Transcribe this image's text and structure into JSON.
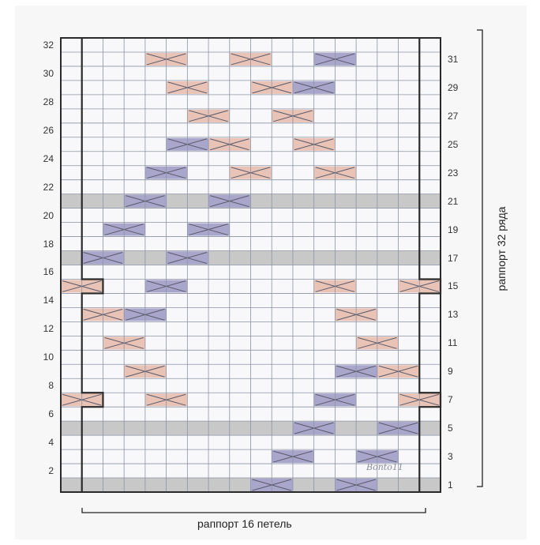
{
  "chart": {
    "columns": 18,
    "rows": 32,
    "repeat_stitches_label": "раппорт 16 петель",
    "repeat_rows_label": "раппорт 32 ряда",
    "watermark": "Bonto11",
    "left_row_numbers": [
      "32",
      "30",
      "28",
      "26",
      "24",
      "22",
      "20",
      "18",
      "16",
      "14",
      "12",
      "10",
      "8",
      "6",
      "4",
      "2"
    ],
    "right_row_numbers": [
      "31",
      "29",
      "27",
      "25",
      "23",
      "21",
      "19",
      "17",
      "15",
      "13",
      "11",
      "9",
      "7",
      "5",
      "3",
      "1"
    ],
    "colors": {
      "pink_cable": "#e9c3b6",
      "blue_cable": "#a9a6cc",
      "gray_row": "#c8c8c8",
      "grid_line": "#8c93a6",
      "border": "#2a2a2a"
    },
    "gray_rows": [
      1,
      5,
      17,
      21
    ],
    "gray_rows_partial": [
      {
        "row": 17,
        "from_col": 8,
        "to_col": 18
      }
    ],
    "cables": [
      {
        "row": 31,
        "col": 4,
        "color": "pink"
      },
      {
        "row": 31,
        "col": 8,
        "color": "pink"
      },
      {
        "row": 31,
        "col": 12,
        "color": "blue"
      },
      {
        "row": 29,
        "col": 5,
        "color": "pink"
      },
      {
        "row": 29,
        "col": 9,
        "color": "pink"
      },
      {
        "row": 29,
        "col": 11,
        "color": "blue"
      },
      {
        "row": 27,
        "col": 6,
        "color": "pink"
      },
      {
        "row": 27,
        "col": 10,
        "color": "pink"
      },
      {
        "row": 25,
        "col": 5,
        "color": "blue"
      },
      {
        "row": 25,
        "col": 7,
        "color": "pink"
      },
      {
        "row": 25,
        "col": 11,
        "color": "pink"
      },
      {
        "row": 23,
        "col": 4,
        "color": "blue"
      },
      {
        "row": 23,
        "col": 8,
        "color": "pink"
      },
      {
        "row": 23,
        "col": 12,
        "color": "pink"
      },
      {
        "row": 21,
        "col": 3,
        "color": "blue"
      },
      {
        "row": 21,
        "col": 7,
        "color": "blue"
      },
      {
        "row": 19,
        "col": 2,
        "color": "blue"
      },
      {
        "row": 19,
        "col": 6,
        "color": "blue"
      },
      {
        "row": 17,
        "col": 1,
        "color": "blue"
      },
      {
        "row": 17,
        "col": 5,
        "color": "blue"
      },
      {
        "row": 15,
        "col": 0,
        "color": "pink"
      },
      {
        "row": 15,
        "col": 4,
        "color": "blue"
      },
      {
        "row": 15,
        "col": 12,
        "color": "pink"
      },
      {
        "row": 15,
        "col": 16,
        "color": "pink"
      },
      {
        "row": 13,
        "col": 1,
        "color": "pink"
      },
      {
        "row": 13,
        "col": 3,
        "color": "blue"
      },
      {
        "row": 13,
        "col": 13,
        "color": "pink"
      },
      {
        "row": 11,
        "col": 2,
        "color": "pink"
      },
      {
        "row": 11,
        "col": 14,
        "color": "pink"
      },
      {
        "row": 9,
        "col": 3,
        "color": "pink"
      },
      {
        "row": 9,
        "col": 13,
        "color": "blue"
      },
      {
        "row": 9,
        "col": 15,
        "color": "pink"
      },
      {
        "row": 7,
        "col": 0,
        "color": "pink"
      },
      {
        "row": 7,
        "col": 4,
        "color": "pink"
      },
      {
        "row": 7,
        "col": 12,
        "color": "blue"
      },
      {
        "row": 7,
        "col": 16,
        "color": "pink"
      },
      {
        "row": 5,
        "col": 11,
        "color": "blue"
      },
      {
        "row": 5,
        "col": 15,
        "color": "blue"
      },
      {
        "row": 3,
        "col": 10,
        "color": "blue"
      },
      {
        "row": 3,
        "col": 14,
        "color": "blue"
      },
      {
        "row": 1,
        "col": 9,
        "color": "blue"
      },
      {
        "row": 1,
        "col": 13,
        "color": "blue"
      }
    ]
  }
}
